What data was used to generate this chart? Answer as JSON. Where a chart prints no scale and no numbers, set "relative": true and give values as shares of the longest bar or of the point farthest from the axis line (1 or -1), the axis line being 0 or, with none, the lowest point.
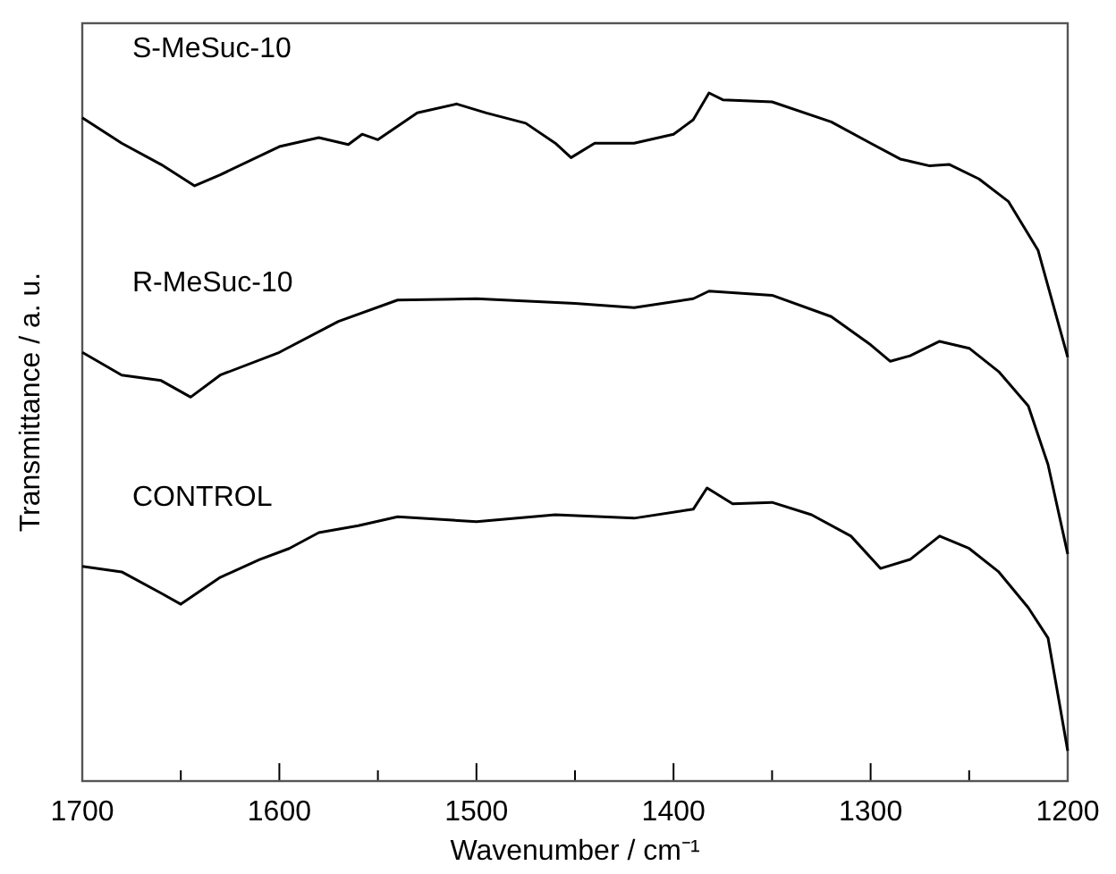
{
  "chart_data": {
    "type": "line",
    "relative": true,
    "xlabel": "Wavenumber / cm⁻¹",
    "ylabel": "Transmittance / a. u.",
    "xlim": [
      1700,
      1200
    ],
    "xticks": [
      1700,
      {
        "value": 1650,
        "label": null
      },
      1600,
      {
        "value": 1550,
        "label": null
      },
      1500,
      {
        "value": 1450,
        "label": null
      },
      1400,
      {
        "value": 1350,
        "label": null
      },
      1300,
      {
        "value": 1250,
        "label": null
      },
      1200
    ],
    "grid": false,
    "legend": false,
    "marker": "none",
    "line_style": "solid",
    "series": [
      {
        "name": "S-MeSuc-10",
        "color": "#000000",
        "x": [
          1700,
          1680,
          1660,
          1643,
          1630,
          1600,
          1580,
          1565,
          1558,
          1550,
          1530,
          1510,
          1495,
          1475,
          1460,
          1452,
          1440,
          1420,
          1400,
          1390,
          1382,
          1375,
          1350,
          1320,
          1300,
          1285,
          1270,
          1260,
          1245,
          1230,
          1215,
          1200
        ],
        "values": [
          0.964,
          0.927,
          0.896,
          0.865,
          0.881,
          0.922,
          0.935,
          0.925,
          0.94,
          0.932,
          0.971,
          0.984,
          0.971,
          0.956,
          0.927,
          0.906,
          0.927,
          0.927,
          0.94,
          0.961,
          1,
          0.99,
          0.987,
          0.958,
          0.927,
          0.904,
          0.894,
          0.896,
          0.875,
          0.842,
          0.771,
          0.616
        ]
      },
      {
        "name": "R-MeSuc-10",
        "color": "#000000",
        "x": [
          1700,
          1680,
          1660,
          1645,
          1630,
          1600,
          1570,
          1540,
          1500,
          1450,
          1420,
          1390,
          1382,
          1350,
          1320,
          1300,
          1290,
          1280,
          1265,
          1250,
          1235,
          1220,
          1210,
          1200
        ],
        "values": [
          0.623,
          0.59,
          0.582,
          0.558,
          0.59,
          0.623,
          0.668,
          0.699,
          0.701,
          0.694,
          0.688,
          0.701,
          0.712,
          0.706,
          0.675,
          0.634,
          0.61,
          0.618,
          0.639,
          0.629,
          0.595,
          0.545,
          0.46,
          0.33
        ]
      },
      {
        "name": "CONTROL",
        "color": "#000000",
        "x": [
          1700,
          1680,
          1660,
          1650,
          1630,
          1610,
          1595,
          1580,
          1560,
          1540,
          1500,
          1460,
          1420,
          1390,
          1383,
          1370,
          1350,
          1330,
          1310,
          1295,
          1280,
          1265,
          1250,
          1235,
          1220,
          1210,
          1200
        ],
        "values": [
          0.312,
          0.304,
          0.273,
          0.257,
          0.296,
          0.322,
          0.338,
          0.361,
          0.371,
          0.384,
          0.377,
          0.387,
          0.382,
          0.395,
          0.426,
          0.403,
          0.405,
          0.387,
          0.356,
          0.309,
          0.322,
          0.356,
          0.338,
          0.304,
          0.252,
          0.208,
          0.044
        ]
      }
    ]
  }
}
